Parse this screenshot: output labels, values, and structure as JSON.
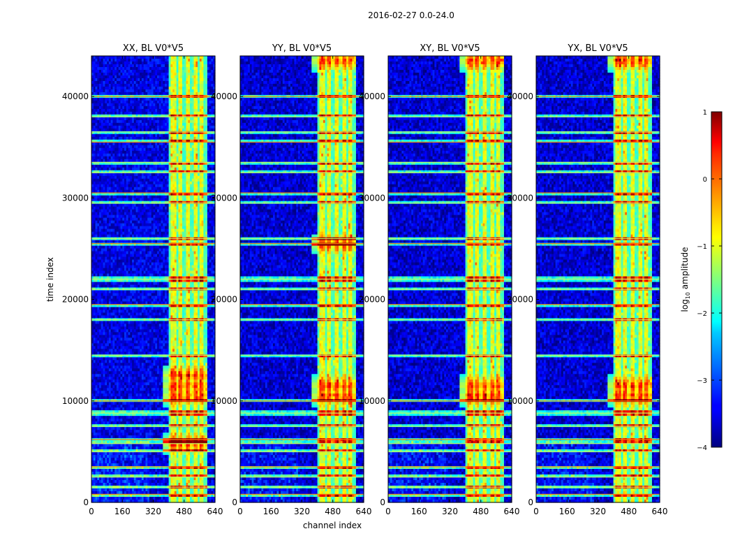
{
  "chart_data": {
    "type": "heatmap",
    "suptitle": "2016-02-27 0.0-24.0",
    "xlabel": "channel index",
    "ylabel": "time index",
    "xlim": [
      0,
      640
    ],
    "ylim": [
      0,
      44000
    ],
    "xticks": [
      0,
      160,
      320,
      480,
      640
    ],
    "xtick_labels": [
      "0",
      "160",
      "320",
      "480",
      "640"
    ],
    "yticks": [
      0,
      10000,
      20000,
      30000,
      40000
    ],
    "ytick_labels": [
      "0",
      "10000",
      "20000",
      "30000",
      "40000"
    ],
    "colorbar": {
      "label_prefix": "log",
      "label_sub": "10",
      "label_suffix": " amplitude",
      "range": [
        -4,
        1
      ],
      "ticks": [
        1,
        0,
        -1,
        -2,
        -3,
        -4
      ],
      "tick_labels": [
        "1",
        "0",
        "−1",
        "−2",
        "−3",
        "−4"
      ],
      "colormap": "jet"
    },
    "panels": [
      {
        "title": "XX, BL V0*V5",
        "band_start": 400,
        "band_end": 600,
        "peak_times": [
          10500,
          11500,
          12500,
          5800
        ],
        "base_level": -3.5
      },
      {
        "title": "YY, BL V0*V5",
        "band_start": 400,
        "band_end": 600,
        "peak_times": [
          10500,
          11500,
          43500,
          25500
        ],
        "base_level": -3.6
      },
      {
        "title": "XY, BL V0*V5",
        "band_start": 400,
        "band_end": 600,
        "peak_times": [
          10500,
          11500,
          43500
        ],
        "base_level": -3.6
      },
      {
        "title": "YX, BL V0*V5",
        "band_start": 400,
        "band_end": 600,
        "peak_times": [
          10500,
          11500,
          43500
        ],
        "base_level": -3.6
      }
    ],
    "rfi_rows": [
      40000,
      38000,
      36500,
      35500,
      33500,
      32500,
      30500,
      29500,
      26000,
      25500,
      22000,
      21000,
      19500,
      18000,
      14500,
      10000,
      8800,
      7500,
      6200,
      5800,
      5000,
      3500,
      2500,
      1500,
      800
    ],
    "band_channel_columns": [
      400,
      445,
      480,
      520,
      555,
      590
    ]
  }
}
